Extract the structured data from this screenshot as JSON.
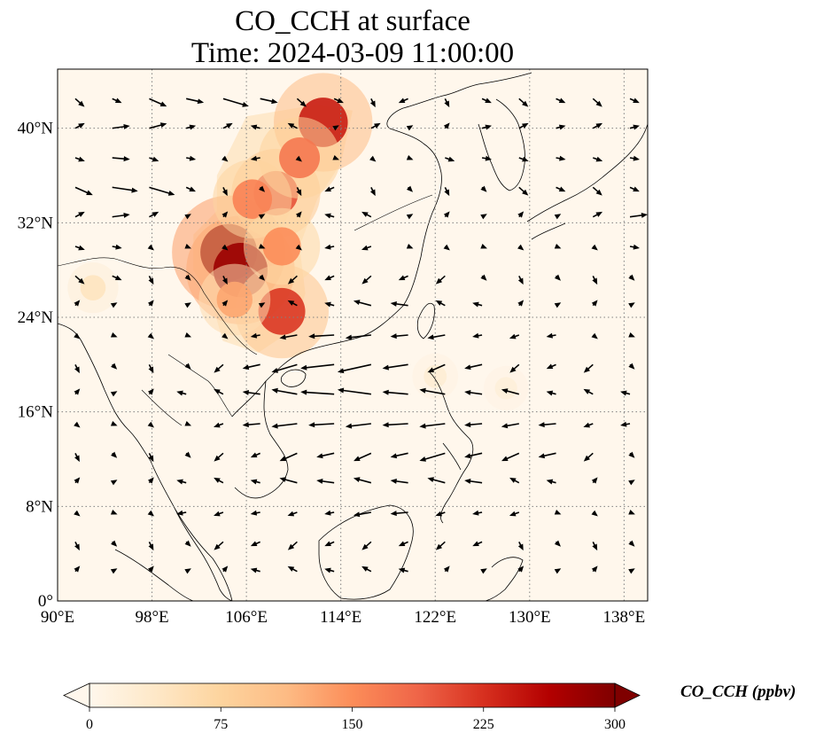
{
  "title": {
    "line1": "CO_CCH at surface",
    "line2": "Time: 2024-03-09 11:00:00"
  },
  "map": {
    "variable": "CO_CCH",
    "level": "surface",
    "extent": {
      "lon": [
        90,
        140
      ],
      "lat": [
        0,
        45
      ]
    },
    "gridlines": "dotted",
    "lon_ticks": [
      {
        "value": 90,
        "label": "90°E"
      },
      {
        "value": 98,
        "label": "98°E"
      },
      {
        "value": 106,
        "label": "106°E"
      },
      {
        "value": 114,
        "label": "114°E"
      },
      {
        "value": 122,
        "label": "122°E"
      },
      {
        "value": 130,
        "label": "130°E"
      },
      {
        "value": 138,
        "label": "138°E"
      }
    ],
    "lat_ticks": [
      {
        "value": 0,
        "label": "0°"
      },
      {
        "value": 8,
        "label": "8°N"
      },
      {
        "value": 16,
        "label": "16°N"
      },
      {
        "value": 24,
        "label": "24°N"
      },
      {
        "value": 32,
        "label": "32°N"
      },
      {
        "value": 40,
        "label": "40°N"
      }
    ],
    "hotspots": [
      {
        "lon": 104.5,
        "lat": 29.5,
        "value": 300
      },
      {
        "lon": 105.5,
        "lat": 28.0,
        "value": 280
      },
      {
        "lon": 112.5,
        "lat": 40.5,
        "value": 240
      },
      {
        "lon": 109.0,
        "lat": 24.5,
        "value": 220
      },
      {
        "lon": 108.5,
        "lat": 34.5,
        "value": 200
      },
      {
        "lon": 106.5,
        "lat": 34.0,
        "value": 160
      },
      {
        "lon": 110.5,
        "lat": 37.5,
        "value": 170
      },
      {
        "lon": 109.0,
        "lat": 30.0,
        "value": 150
      },
      {
        "lon": 105.0,
        "lat": 25.5,
        "value": 130
      },
      {
        "lon": 93.0,
        "lat": 26.5,
        "value": 45
      },
      {
        "lon": 122.0,
        "lat": 19.0,
        "value": 25
      },
      {
        "lon": 128.0,
        "lat": 18.0,
        "value": 20
      }
    ],
    "plume_outline": [
      [
        106,
        41
      ],
      [
        112,
        42
      ],
      [
        115,
        41.5
      ],
      [
        114,
        37
      ],
      [
        112,
        34
      ],
      [
        110.5,
        30
      ],
      [
        111,
        26
      ],
      [
        110,
        23
      ],
      [
        107,
        21
      ],
      [
        104,
        22
      ],
      [
        103,
        25.5
      ],
      [
        101.5,
        28
      ],
      [
        101.5,
        31
      ],
      [
        103.5,
        33
      ],
      [
        103.5,
        36
      ],
      [
        105,
        39
      ]
    ],
    "wind_vectors": {
      "rows": [
        {
          "lat": 42.5,
          "u": [
            1,
            1,
            2,
            2,
            3,
            2,
            1,
            1,
            0,
            -1,
            0,
            1,
            1,
            1,
            1,
            1
          ]
        },
        {
          "lat": 40,
          "u": [
            1,
            2,
            2,
            1,
            1,
            -1,
            -1,
            0,
            1,
            0,
            0,
            1,
            1,
            1,
            1,
            1
          ]
        },
        {
          "lat": 37.5,
          "u": [
            1,
            2,
            1,
            1,
            0,
            -1,
            0,
            0,
            0,
            0,
            1,
            1,
            1,
            1,
            1,
            1
          ]
        },
        {
          "lat": 35,
          "u": [
            2,
            3,
            3,
            1,
            0,
            0,
            0,
            -1,
            0,
            0,
            0,
            0,
            1,
            1,
            1,
            1
          ]
        },
        {
          "lat": 32.5,
          "u": [
            1,
            2,
            1,
            0,
            0,
            0,
            0,
            -1,
            -1,
            0,
            0,
            0,
            0,
            0,
            1,
            2
          ]
        },
        {
          "lat": 30,
          "u": [
            1,
            1,
            0,
            0,
            0,
            0,
            0,
            -1,
            -1,
            0,
            0,
            0,
            0,
            0,
            0,
            1
          ]
        },
        {
          "lat": 27.5,
          "u": [
            1,
            1,
            0,
            0,
            0,
            0,
            -1,
            -1,
            -1,
            -1,
            -1,
            0,
            0,
            0,
            0,
            0
          ]
        },
        {
          "lat": 25,
          "u": [
            0,
            0,
            0,
            0,
            0,
            0,
            -1,
            -1,
            -2,
            -2,
            -1,
            -1,
            0,
            0,
            0,
            0
          ]
        },
        {
          "lat": 22.5,
          "u": [
            0,
            0,
            0,
            0,
            0,
            -1,
            -2,
            -3,
            -3,
            -2,
            -2,
            -1,
            -1,
            -1,
            0,
            0
          ]
        },
        {
          "lat": 20,
          "u": [
            0,
            0,
            0,
            0,
            -1,
            -2,
            -3,
            -4,
            -4,
            -3,
            -2,
            -2,
            -1,
            -1,
            -1,
            0
          ]
        },
        {
          "lat": 17.5,
          "u": [
            0,
            0,
            0,
            -1,
            -1,
            -2,
            -3,
            -4,
            -4,
            -3,
            -3,
            -2,
            -2,
            -1,
            -1,
            -1
          ]
        },
        {
          "lat": 15,
          "u": [
            0,
            0,
            0,
            0,
            -1,
            -2,
            -3,
            -3,
            -3,
            -3,
            -3,
            -2,
            -2,
            -2,
            -1,
            -1
          ]
        },
        {
          "lat": 12.5,
          "u": [
            0,
            0,
            0,
            0,
            -1,
            -1,
            -2,
            -2,
            -2,
            -2,
            -3,
            -2,
            -2,
            -2,
            -1,
            0
          ]
        },
        {
          "lat": 10,
          "u": [
            0,
            0,
            0,
            -1,
            -1,
            -1,
            -2,
            -2,
            -2,
            -2,
            -2,
            -2,
            -1,
            -1,
            0,
            0
          ]
        },
        {
          "lat": 7.5,
          "u": [
            0,
            0,
            0,
            -1,
            -1,
            -1,
            -1,
            -1,
            -2,
            -2,
            -1,
            -1,
            -1,
            0,
            0,
            0
          ]
        },
        {
          "lat": 5,
          "u": [
            0,
            0,
            0,
            0,
            -1,
            -1,
            -1,
            -1,
            -1,
            -1,
            -1,
            -1,
            0,
            0,
            0,
            0
          ]
        },
        {
          "lat": 2.5,
          "u": [
            0,
            0,
            0,
            0,
            0,
            -1,
            -1,
            -1,
            -1,
            -1,
            0,
            0,
            0,
            0,
            0,
            0
          ]
        }
      ]
    }
  },
  "colorbar": {
    "label": "CO_CCH (ppbv)",
    "min": 0,
    "max": 300,
    "extend": "both",
    "colormap": "OrRd",
    "stops": [
      "#fff7ec",
      "#fee8c8",
      "#fdd49e",
      "#fdbb84",
      "#fc8d59",
      "#ef6548",
      "#d7301f",
      "#b30000",
      "#7f0000"
    ],
    "ticks": [
      {
        "value": 0,
        "label": "0"
      },
      {
        "value": 75,
        "label": "75"
      },
      {
        "value": 150,
        "label": "150"
      },
      {
        "value": 225,
        "label": "225"
      },
      {
        "value": 300,
        "label": "300"
      }
    ]
  }
}
